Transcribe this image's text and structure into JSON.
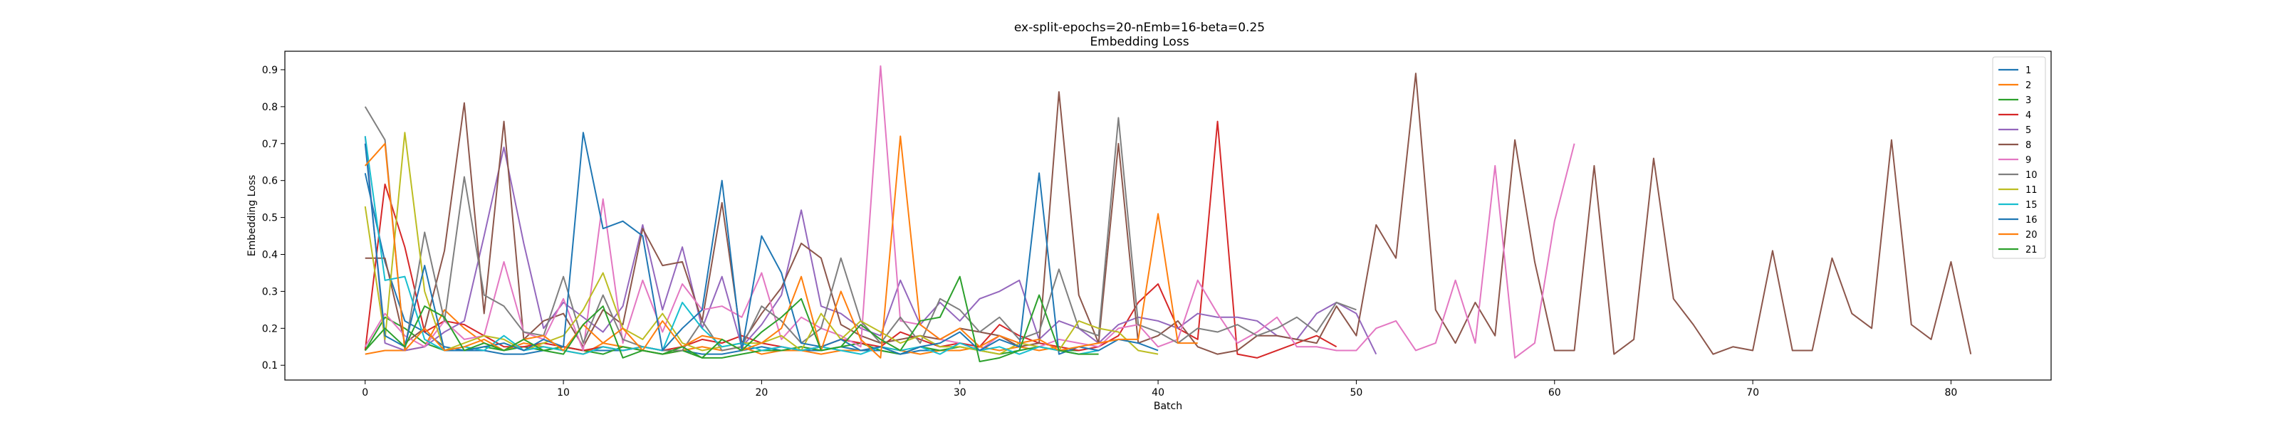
{
  "chart_data": {
    "type": "line",
    "title": "ex-split-epochs=20-nEmb=16-beta=0.25",
    "subtitle": "Embedding Loss",
    "xlabel": "Batch",
    "ylabel": "Embedding Loss",
    "xlim": [
      -4.05,
      85.05
    ],
    "ylim": [
      0.06,
      0.95
    ],
    "xticks": [
      0,
      10,
      20,
      30,
      40,
      50,
      60,
      70,
      80
    ],
    "yticks": [
      0.1,
      0.2,
      0.3,
      0.4,
      0.5,
      0.6,
      0.7,
      0.8,
      0.9
    ],
    "grid": false,
    "legend_position": "top-right",
    "series": [
      {
        "name": "1",
        "color": "#1f77b4",
        "values": [
          0.62,
          0.38,
          0.22,
          0.19,
          0.15,
          0.14,
          0.14,
          0.13,
          0.13,
          0.14,
          0.15,
          0.14,
          0.14,
          0.14,
          0.15,
          0.14,
          0.14,
          0.13,
          0.13,
          0.14,
          0.15,
          0.14,
          0.14,
          0.14,
          0.15,
          0.14,
          0.14,
          0.13,
          0.14,
          0.14,
          0.15
        ]
      },
      {
        "name": "2",
        "color": "#ff7f0e",
        "values": [
          0.13,
          0.14,
          0.14,
          0.15,
          0.25,
          0.2,
          0.16,
          0.14,
          0.16,
          0.15,
          0.14,
          0.13,
          0.16,
          0.15,
          0.14,
          0.13,
          0.14,
          0.15,
          0.14,
          0.15,
          0.13,
          0.14,
          0.14,
          0.13,
          0.14,
          0.14,
          0.15,
          0.14,
          0.13,
          0.14,
          0.14,
          0.15,
          0.14,
          0.15,
          0.14,
          0.15
        ]
      },
      {
        "name": "3",
        "color": "#2ca02c",
        "values": [
          0.14,
          0.23,
          0.2,
          0.16,
          0.14,
          0.14,
          0.15,
          0.14,
          0.15,
          0.14,
          0.15,
          0.14,
          0.13,
          0.15,
          0.14,
          0.13,
          0.14,
          0.12,
          0.12,
          0.13,
          0.14,
          0.14,
          0.15,
          0.14,
          0.15,
          0.16,
          0.14,
          0.13,
          0.15,
          0.14,
          0.15,
          0.14,
          0.13,
          0.14,
          0.15,
          0.14,
          0.14
        ]
      },
      {
        "name": "4",
        "color": "#d62728",
        "values": [
          0.14,
          0.59,
          0.42,
          0.19,
          0.22,
          0.21,
          0.18,
          0.15,
          0.15,
          0.16,
          0.15,
          0.14,
          0.15,
          0.14,
          0.15,
          0.14,
          0.15,
          0.17,
          0.16,
          0.18,
          0.16,
          0.15,
          0.14,
          0.15,
          0.17,
          0.16,
          0.15,
          0.19,
          0.17,
          0.15,
          0.16,
          0.15,
          0.21,
          0.18,
          0.16,
          0.15,
          0.14,
          0.15,
          0.18,
          0.27,
          0.32,
          0.2,
          0.17,
          0.76,
          0.13,
          0.12,
          0.14,
          0.16,
          0.18,
          0.15
        ]
      },
      {
        "name": "5",
        "color": "#9467bd",
        "values": [
          0.72,
          0.16,
          0.14,
          0.15,
          0.19,
          0.22,
          0.45,
          0.69,
          0.43,
          0.2,
          0.27,
          0.23,
          0.19,
          0.26,
          0.48,
          0.25,
          0.42,
          0.2,
          0.34,
          0.15,
          0.21,
          0.29,
          0.52,
          0.26,
          0.24,
          0.2,
          0.18,
          0.33,
          0.21,
          0.27,
          0.22,
          0.28,
          0.3,
          0.33,
          0.17,
          0.22,
          0.2,
          0.16,
          0.21,
          0.23,
          0.22,
          0.2,
          0.24,
          0.23,
          0.23,
          0.22,
          0.18,
          0.17,
          0.24,
          0.27,
          0.24,
          0.13
        ]
      },
      {
        "name": "8",
        "color": "#8c564b",
        "values": [
          0.39,
          0.39,
          0.16,
          0.2,
          0.41,
          0.81,
          0.24,
          0.76,
          0.17,
          0.22,
          0.24,
          0.15,
          0.25,
          0.21,
          0.47,
          0.37,
          0.38,
          0.22,
          0.54,
          0.16,
          0.24,
          0.31,
          0.43,
          0.39,
          0.21,
          0.18,
          0.16,
          0.17,
          0.18,
          0.17,
          0.2,
          0.19,
          0.18,
          0.15,
          0.16,
          0.84,
          0.29,
          0.16,
          0.7,
          0.16,
          0.18,
          0.22,
          0.15,
          0.13,
          0.14,
          0.18,
          0.18,
          0.17,
          0.16,
          0.26,
          0.18,
          0.48,
          0.39,
          0.89,
          0.25,
          0.16,
          0.27,
          0.18,
          0.71,
          0.38,
          0.14,
          0.14,
          0.64,
          0.13,
          0.17,
          0.66,
          0.28,
          0.21,
          0.13,
          0.15,
          0.14,
          0.41,
          0.14,
          0.14,
          0.39,
          0.24,
          0.2,
          0.71,
          0.21,
          0.17,
          0.38,
          0.13
        ]
      },
      {
        "name": "9",
        "color": "#e377c2",
        "values": [
          0.15,
          0.24,
          0.18,
          0.15,
          0.22,
          0.17,
          0.18,
          0.38,
          0.19,
          0.17,
          0.28,
          0.14,
          0.55,
          0.16,
          0.33,
          0.19,
          0.32,
          0.25,
          0.26,
          0.23,
          0.35,
          0.17,
          0.23,
          0.2,
          0.18,
          0.15,
          0.91,
          0.22,
          0.21,
          0.17,
          0.16,
          0.14,
          0.18,
          0.16,
          0.15,
          0.17,
          0.16,
          0.15,
          0.2,
          0.21,
          0.15,
          0.17,
          0.33,
          0.24,
          0.16,
          0.19,
          0.23,
          0.15,
          0.15,
          0.14,
          0.14,
          0.2,
          0.22,
          0.14,
          0.16,
          0.33,
          0.16,
          0.64,
          0.12,
          0.16,
          0.49,
          0.7
        ]
      },
      {
        "name": "10",
        "color": "#7f7f7f",
        "values": [
          0.8,
          0.71,
          0.14,
          0.46,
          0.22,
          0.61,
          0.29,
          0.26,
          0.19,
          0.18,
          0.34,
          0.16,
          0.29,
          0.17,
          0.15,
          0.14,
          0.14,
          0.22,
          0.14,
          0.15,
          0.26,
          0.22,
          0.16,
          0.2,
          0.39,
          0.22,
          0.16,
          0.23,
          0.16,
          0.28,
          0.25,
          0.19,
          0.23,
          0.17,
          0.19,
          0.36,
          0.2,
          0.18,
          0.77,
          0.21,
          0.19,
          0.16,
          0.2,
          0.19,
          0.21,
          0.18,
          0.2,
          0.23,
          0.19,
          0.27,
          0.25
        ]
      },
      {
        "name": "11",
        "color": "#bcbd22",
        "values": [
          0.53,
          0.17,
          0.73,
          0.3,
          0.14,
          0.16,
          0.18,
          0.17,
          0.14,
          0.16,
          0.18,
          0.25,
          0.35,
          0.2,
          0.17,
          0.24,
          0.16,
          0.14,
          0.15,
          0.16,
          0.16,
          0.18,
          0.14,
          0.24,
          0.17,
          0.22,
          0.19,
          0.16,
          0.18,
          0.15,
          0.15,
          0.14,
          0.13,
          0.16,
          0.15,
          0.14,
          0.22,
          0.2,
          0.19,
          0.14,
          0.13
        ]
      },
      {
        "name": "15",
        "color": "#17becf",
        "values": [
          0.72,
          0.33,
          0.34,
          0.17,
          0.14,
          0.15,
          0.14,
          0.18,
          0.14,
          0.15,
          0.14,
          0.13,
          0.15,
          0.14,
          0.15,
          0.14,
          0.27,
          0.2,
          0.15,
          0.16,
          0.14,
          0.15,
          0.14,
          0.15,
          0.14,
          0.13,
          0.15,
          0.14,
          0.15,
          0.13,
          0.16,
          0.14,
          0.15,
          0.13,
          0.15,
          0.14,
          0.13,
          0.14
        ]
      },
      {
        "name": "16",
        "color": "#1f77b4",
        "values": [
          0.7,
          0.18,
          0.15,
          0.37,
          0.14,
          0.14,
          0.15,
          0.16,
          0.14,
          0.17,
          0.15,
          0.73,
          0.47,
          0.49,
          0.45,
          0.14,
          0.2,
          0.25,
          0.6,
          0.14,
          0.45,
          0.35,
          0.16,
          0.15,
          0.17,
          0.14,
          0.15,
          0.13,
          0.15,
          0.16,
          0.19,
          0.14,
          0.17,
          0.15,
          0.62,
          0.13,
          0.15,
          0.14,
          0.17,
          0.16,
          0.14
        ]
      },
      {
        "name": "20",
        "color": "#ff7f0e",
        "values": [
          0.64,
          0.7,
          0.14,
          0.2,
          0.14,
          0.15,
          0.17,
          0.14,
          0.17,
          0.18,
          0.14,
          0.21,
          0.16,
          0.2,
          0.14,
          0.22,
          0.15,
          0.18,
          0.17,
          0.14,
          0.16,
          0.2,
          0.34,
          0.14,
          0.3,
          0.17,
          0.12,
          0.72,
          0.21,
          0.17,
          0.2,
          0.15,
          0.18,
          0.16,
          0.17,
          0.14,
          0.15,
          0.16,
          0.17,
          0.17,
          0.51,
          0.16,
          0.16
        ]
      },
      {
        "name": "21",
        "color": "#2ca02c",
        "values": [
          0.14,
          0.2,
          0.15,
          0.26,
          0.23,
          0.14,
          0.16,
          0.14,
          0.17,
          0.14,
          0.13,
          0.21,
          0.26,
          0.12,
          0.14,
          0.13,
          0.15,
          0.12,
          0.17,
          0.14,
          0.19,
          0.23,
          0.28,
          0.14,
          0.15,
          0.21,
          0.17,
          0.14,
          0.22,
          0.23,
          0.34,
          0.11,
          0.12,
          0.14,
          0.29,
          0.14,
          0.13,
          0.13
        ]
      }
    ]
  }
}
